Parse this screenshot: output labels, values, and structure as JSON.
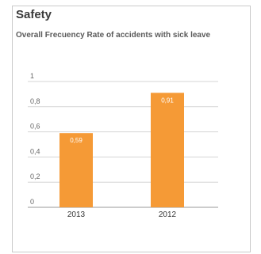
{
  "panel": {
    "title": "Safety",
    "subtitle": "Overall Frecuency Rate of accidents with sick leave"
  },
  "chart_data": {
    "type": "bar",
    "title": "Safety",
    "subtitle": "Overall Frecuency Rate of accidents with sick leave",
    "categories": [
      "2013",
      "2012"
    ],
    "values": [
      0.59,
      0.91
    ],
    "data_labels": [
      "0,59",
      "0,91"
    ],
    "yticks": [
      "0",
      "0,2",
      "0,4",
      "0,6",
      "0,8",
      "1"
    ],
    "ylim": [
      0,
      1
    ],
    "grid": true,
    "legend": "none",
    "bar_color": "#f59a36"
  }
}
